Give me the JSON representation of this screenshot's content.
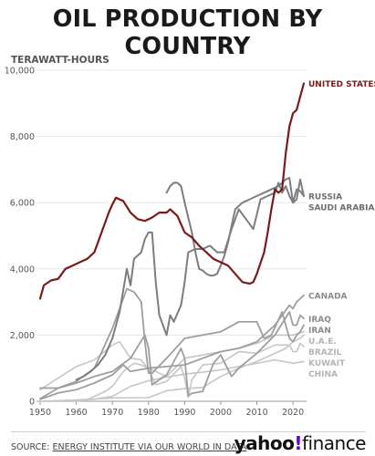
{
  "header": {
    "title": "OIL PRODUCTION BY COUNTRY",
    "unit_label": "TERAWATT-HOURS"
  },
  "footer": {
    "source_prefix": "SOURCE:",
    "source_text": "ENERGY INSTITUTE VIA OUR WORLD IN DATA",
    "logo_word": "yahoo",
    "logo_mark": "!",
    "logo_suffix": "finance"
  },
  "colors": {
    "highlight": "#7a1b1b",
    "major": "#7d7d7d",
    "mid": "#9e9e9e",
    "light": "#c6c6c6",
    "grid": "#e6e6e6"
  },
  "chart_data": {
    "type": "line",
    "title": "OIL PRODUCTION BY COUNTRY",
    "ylabel": "TERAWATT-HOURS",
    "xlim": [
      1950,
      2023
    ],
    "ylim": [
      0,
      10000
    ],
    "x_ticks": [
      1950,
      1960,
      1970,
      1980,
      1990,
      2000,
      2010,
      2020
    ],
    "y_ticks": [
      0,
      2000,
      4000,
      6000,
      8000,
      10000
    ],
    "y_tick_labels": [
      "0",
      "2,000",
      "4,000",
      "6,000",
      "8,000",
      "10,000"
    ],
    "grid": "horizontal",
    "series": [
      {
        "name": "UNITED STATES",
        "tone": "highlight",
        "x": [
          1950,
          1951,
          1953,
          1955,
          1957,
          1959,
          1961,
          1963,
          1965,
          1967,
          1969,
          1970,
          1971,
          1973,
          1975,
          1977,
          1979,
          1981,
          1983,
          1985,
          1986,
          1988,
          1990,
          1992,
          1994,
          1996,
          1998,
          2000,
          2002,
          2004,
          2006,
          2008,
          2009,
          2010,
          2012,
          2013,
          2014,
          2015,
          2016,
          2017,
          2018,
          2019,
          2020,
          2021,
          2022,
          2023
        ],
        "y": [
          3100,
          3500,
          3650,
          3700,
          4000,
          4100,
          4200,
          4300,
          4500,
          5100,
          5700,
          5950,
          6150,
          6050,
          5700,
          5500,
          5450,
          5550,
          5700,
          5700,
          5800,
          5600,
          5100,
          4950,
          4700,
          4500,
          4300,
          4200,
          4100,
          3850,
          3600,
          3550,
          3600,
          3850,
          4500,
          5100,
          5800,
          6400,
          6300,
          6400,
          7500,
          8300,
          8700,
          8800,
          9200,
          9600
        ]
      },
      {
        "name": "RUSSIA",
        "tone": "major",
        "x": [
          1985,
          1986,
          1987,
          1988,
          1989,
          1990,
          1991,
          1992,
          1993,
          1994,
          1995,
          1996,
          1997,
          1998,
          1999,
          2000,
          2001,
          2002,
          2003,
          2004,
          2006,
          2008,
          2010,
          2012,
          2014,
          2016,
          2018,
          2019,
          2020,
          2021,
          2022,
          2023
        ],
        "y": [
          6300,
          6500,
          6600,
          6600,
          6500,
          6000,
          5550,
          5100,
          4500,
          4000,
          3950,
          3850,
          3800,
          3800,
          3850,
          4100,
          4400,
          4800,
          5300,
          5800,
          6000,
          6100,
          6200,
          6300,
          6400,
          6500,
          6700,
          6750,
          6000,
          6400,
          6350,
          6200
        ]
      },
      {
        "name": "SAUDI ARABIA",
        "tone": "major",
        "x": [
          1960,
          1962,
          1964,
          1966,
          1968,
          1970,
          1972,
          1974,
          1975,
          1976,
          1978,
          1979,
          1980,
          1981,
          1982,
          1983,
          1984,
          1985,
          1986,
          1987,
          1989,
          1990,
          1991,
          1993,
          1995,
          1997,
          1999,
          2001,
          2003,
          2005,
          2007,
          2009,
          2011,
          2013,
          2015,
          2016,
          2017,
          2018,
          2019,
          2020,
          2021,
          2022,
          2023
        ],
        "y": [
          650,
          750,
          900,
          1100,
          1400,
          1900,
          2700,
          4000,
          3500,
          4300,
          4500,
          4900,
          5100,
          5100,
          3600,
          2600,
          2300,
          2000,
          2600,
          2400,
          2900,
          3600,
          4500,
          4600,
          4600,
          4700,
          4500,
          4500,
          5200,
          5800,
          5500,
          5200,
          6100,
          6200,
          6300,
          6600,
          6300,
          6500,
          6200,
          6000,
          6100,
          6700,
          6200
        ]
      },
      {
        "name": "CANADA",
        "tone": "mid",
        "x": [
          1950,
          1955,
          1960,
          1965,
          1970,
          1973,
          1975,
          1980,
          1985,
          1990,
          1995,
          2000,
          2005,
          2010,
          2015,
          2019,
          2020,
          2021,
          2022,
          2023
        ],
        "y": [
          60,
          250,
          350,
          550,
          800,
          1100,
          900,
          1000,
          1050,
          1100,
          1300,
          1500,
          1600,
          1800,
          2300,
          2900,
          2800,
          3000,
          3100,
          3200
        ]
      },
      {
        "name": "IRAN",
        "tone": "mid",
        "x": [
          1950,
          1955,
          1960,
          1965,
          1970,
          1974,
          1976,
          1978,
          1979,
          1980,
          1981,
          1985,
          1990,
          1995,
          2000,
          2005,
          2010,
          2012,
          2014,
          2017,
          2019,
          2020,
          2021,
          2022,
          2023
        ],
        "y": [
          400,
          400,
          600,
          1000,
          2200,
          3400,
          3300,
          3000,
          1800,
          850,
          850,
          1300,
          1900,
          2000,
          2100,
          2400,
          2400,
          1900,
          2000,
          2700,
          1900,
          1800,
          2000,
          2100,
          2300
        ]
      },
      {
        "name": "IRAQ",
        "tone": "mid",
        "x": [
          1950,
          1955,
          1960,
          1965,
          1970,
          1975,
          1979,
          1980,
          1981,
          1985,
          1989,
          1990,
          1991,
          1992,
          1995,
          1998,
          2000,
          2003,
          2005,
          2010,
          2015,
          2019,
          2020,
          2021,
          2022,
          2023
        ],
        "y": [
          80,
          400,
          550,
          750,
          900,
          1300,
          2000,
          1600,
          500,
          800,
          1600,
          1300,
          160,
          240,
          300,
          1150,
          1400,
          750,
          1000,
          1450,
          2000,
          2700,
          2300,
          2300,
          2600,
          2500
        ]
      },
      {
        "name": "CHINA",
        "tone": "light",
        "x": [
          1950,
          1960,
          1965,
          1970,
          1975,
          1980,
          1985,
          1990,
          1995,
          2000,
          2005,
          2010,
          2015,
          2020,
          2023
        ],
        "y": [
          0,
          30,
          60,
          150,
          450,
          620,
          730,
          820,
          880,
          950,
          1050,
          1150,
          1250,
          1150,
          1200
        ]
      },
      {
        "name": "BRAZIL",
        "tone": "light",
        "x": [
          1950,
          1960,
          1970,
          1980,
          1985,
          1990,
          1995,
          2000,
          2005,
          2010,
          2014,
          2016,
          2018,
          2020,
          2022,
          2023
        ],
        "y": [
          0,
          40,
          100,
          110,
          320,
          380,
          420,
          750,
          1000,
          1200,
          1400,
          1500,
          1600,
          1800,
          1900,
          2000
        ]
      },
      {
        "name": "U.A.E.",
        "tone": "light",
        "x": [
          1950,
          1962,
          1965,
          1968,
          1970,
          1973,
          1976,
          1978,
          1980,
          1982,
          1985,
          1990,
          1995,
          2000,
          2005,
          2010,
          2015,
          2020,
          2023
        ],
        "y": [
          0,
          0,
          150,
          300,
          450,
          900,
          1150,
          1100,
          1000,
          900,
          750,
          1300,
          1400,
          1500,
          1600,
          1750,
          2000,
          2000,
          2100
        ]
      },
      {
        "name": "KUWAIT",
        "tone": "light",
        "x": [
          1950,
          1955,
          1960,
          1965,
          1970,
          1972,
          1975,
          1978,
          1980,
          1982,
          1985,
          1989,
          1990,
          1991,
          1992,
          1995,
          2000,
          2005,
          2010,
          2015,
          2019,
          2020,
          2021,
          2022,
          2023
        ],
        "y": [
          350,
          700,
          1050,
          1250,
          1700,
          1800,
          1300,
          1250,
          950,
          500,
          600,
          1050,
          700,
          120,
          650,
          1100,
          1150,
          1500,
          1450,
          1700,
          1700,
          1500,
          1500,
          1750,
          1650
        ]
      }
    ],
    "end_labels": [
      {
        "text": "UNITED STATES",
        "series": "UNITED STATES"
      },
      {
        "text": "RUSSIA",
        "series": "RUSSIA"
      },
      {
        "text": "SAUDI ARABIA",
        "series": "SAUDI ARABIA"
      },
      {
        "text": "CANADA",
        "series": "CANADA"
      },
      {
        "text": "IRAN",
        "series": "IRAN"
      },
      {
        "text": "IRAQ",
        "series": "IRAQ"
      },
      {
        "text": "CHINA",
        "series": "CHINA"
      },
      {
        "text": "BRAZIL",
        "series": "BRAZIL"
      },
      {
        "text": "U.A.E.",
        "series": "U.A.E."
      },
      {
        "text": "KUWAIT",
        "series": "KUWAIT"
      }
    ]
  }
}
